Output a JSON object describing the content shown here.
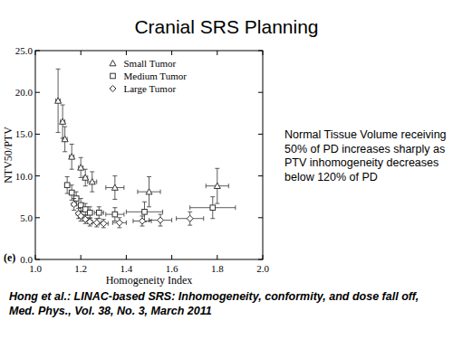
{
  "chart_data": {
    "type": "scatter",
    "title": "Cranial SRS Planning",
    "xlabel": "Homogeneity Index",
    "ylabel": "NTV50/PTV",
    "annotations": [
      "(e)",
      "Normal Tissue Volume receiving 50% of PD increases sharply as PTV inhomogeneity decreases below 120% of PD",
      "Hong et al.: LINAC-based SRS: Inhomogeneity, conformity, and dose fall off, Med. Phys., Vol. 38, No. 3, March 2011"
    ],
    "xlim": [
      1.0,
      2.0
    ],
    "ylim": [
      0,
      25
    ],
    "xticks": [
      {
        "value": 1.0,
        "label": "1.0"
      },
      {
        "value": 1.2,
        "label": "1.2"
      },
      {
        "value": 1.4,
        "label": "1.4"
      },
      {
        "value": 1.6,
        "label": "1.6"
      },
      {
        "value": 1.8,
        "label": "1.8"
      },
      {
        "value": 2.0,
        "label": "2.0"
      }
    ],
    "yticks": [
      {
        "value": 0,
        "label": "0.0"
      },
      {
        "value": 5,
        "label": "5.0"
      },
      {
        "value": 10,
        "label": "10.0"
      },
      {
        "value": 15,
        "label": "15.0"
      },
      {
        "value": 20,
        "label": "20.0"
      },
      {
        "value": 25,
        "label": "25.0"
      }
    ],
    "grid": false,
    "legend": "top",
    "series": [
      {
        "name": "Small Tumor",
        "color": "#333333",
        "marker": "triangle",
        "x": [
          1.1,
          1.12,
          1.13,
          1.16,
          1.2,
          1.22,
          1.25,
          1.35,
          1.5,
          1.8
        ],
        "values": [
          19.0,
          16.5,
          14.4,
          12.3,
          11.0,
          9.8,
          9.3,
          8.6,
          8.1,
          8.8
        ],
        "yerr": [
          3.8,
          2.0,
          1.5,
          1.5,
          1.2,
          1.0,
          1.2,
          1.4,
          1.8,
          2.1
        ],
        "xerr": [
          0.01,
          0.01,
          0.01,
          0.01,
          0.01,
          0.01,
          0.02,
          0.04,
          0.05,
          0.05
        ]
      },
      {
        "name": "Medium Tumor",
        "color": "#333333",
        "marker": "square",
        "x": [
          1.14,
          1.16,
          1.18,
          1.2,
          1.22,
          1.24,
          1.28,
          1.35,
          1.48,
          1.78
        ],
        "values": [
          8.9,
          8.0,
          7.3,
          6.5,
          6.0,
          5.6,
          5.6,
          5.4,
          5.7,
          6.2
        ],
        "yerr": [
          1.0,
          0.9,
          0.8,
          0.8,
          0.7,
          0.7,
          0.7,
          0.8,
          1.2,
          1.3
        ],
        "xerr": [
          0.01,
          0.01,
          0.01,
          0.01,
          0.01,
          0.01,
          0.02,
          0.04,
          0.08,
          0.1
        ]
      },
      {
        "name": "Large Tumor",
        "color": "#333333",
        "marker": "diamond",
        "x": [
          1.17,
          1.19,
          1.2,
          1.22,
          1.24,
          1.27,
          1.3,
          1.37,
          1.47,
          1.55,
          1.68
        ],
        "values": [
          6.6,
          5.5,
          5.2,
          4.8,
          4.5,
          4.4,
          4.3,
          4.4,
          4.6,
          4.7,
          4.9
        ],
        "yerr": [
          0.7,
          0.6,
          0.6,
          0.5,
          0.5,
          0.5,
          0.5,
          0.6,
          0.6,
          0.7,
          0.8
        ],
        "xerr": [
          0.01,
          0.01,
          0.01,
          0.01,
          0.01,
          0.02,
          0.02,
          0.03,
          0.04,
          0.05,
          0.06
        ]
      }
    ]
  }
}
